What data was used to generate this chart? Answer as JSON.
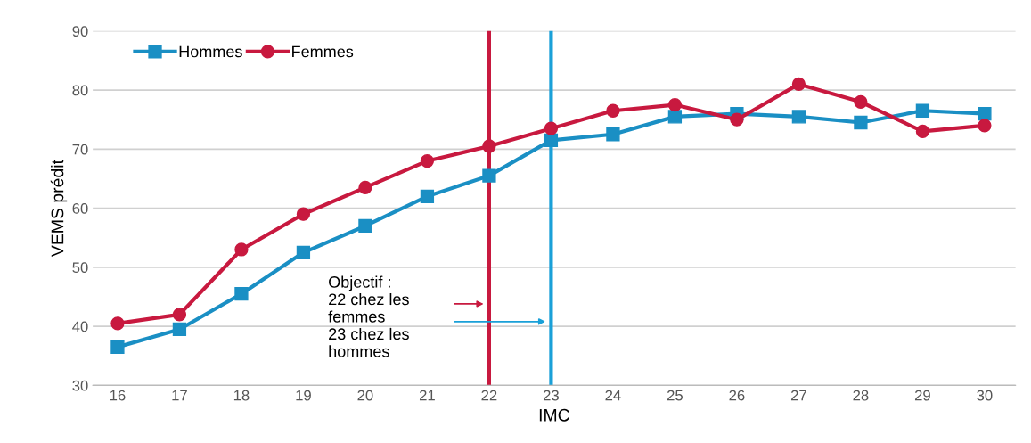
{
  "chart_data": {
    "type": "line",
    "xlabel": "IMC",
    "ylabel": "VEMS prédit",
    "x": [
      16,
      17,
      18,
      19,
      20,
      21,
      22,
      23,
      24,
      25,
      26,
      27,
      28,
      29,
      30
    ],
    "xlim": [
      15.6,
      30.5
    ],
    "xticks": [
      16,
      17,
      18,
      19,
      20,
      21,
      22,
      23,
      24,
      25,
      26,
      27,
      28,
      29,
      30
    ],
    "ylim": [
      30,
      90
    ],
    "yticks": [
      30,
      40,
      50,
      60,
      70,
      80,
      90
    ],
    "series": [
      {
        "name": "Hommes",
        "color": "#1a8fc4",
        "marker": "square",
        "values": [
          36.5,
          39.5,
          45.5,
          52.5,
          57,
          62,
          65.5,
          71.5,
          72.5,
          75.5,
          76,
          75.5,
          74.5,
          76.5,
          76
        ]
      },
      {
        "name": "Femmes",
        "color": "#c8193f",
        "marker": "circle",
        "values": [
          40.5,
          42,
          53,
          59,
          63.5,
          68,
          70.5,
          73.5,
          76.5,
          77.5,
          75,
          81,
          78,
          73,
          74
        ]
      }
    ],
    "ref_lines": [
      {
        "axis": "x",
        "value": 22,
        "color": "#c8193f"
      },
      {
        "axis": "x",
        "value": 23,
        "color": "#1aa0d8"
      }
    ],
    "annotations": [
      "Objectif :\n22 chez les\nfemmes\n23 chez les\nhommes"
    ],
    "grid": "y",
    "legend": "top left",
    "line_style": "solid"
  }
}
